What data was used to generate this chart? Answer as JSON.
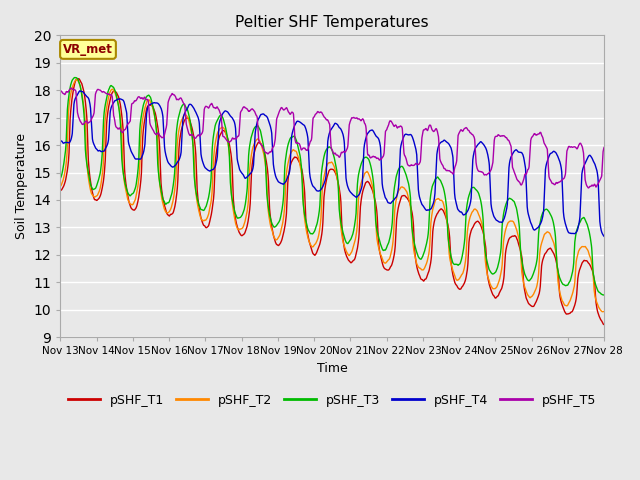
{
  "title": "Peltier SHF Temperatures",
  "xlabel": "Time",
  "ylabel": "Soil Temperature",
  "ylim": [
    9.0,
    20.0
  ],
  "yticks": [
    9.0,
    10.0,
    11.0,
    12.0,
    13.0,
    14.0,
    15.0,
    16.0,
    17.0,
    18.0,
    19.0,
    20.0
  ],
  "xtick_labels": [
    "Nov 13",
    "Nov 14",
    "Nov 15",
    "Nov 16",
    "Nov 17",
    "Nov 18",
    "Nov 19",
    "Nov 20",
    "Nov 21",
    "Nov 22",
    "Nov 23",
    "Nov 24",
    "Nov 25",
    "Nov 26",
    "Nov 27",
    "Nov 28"
  ],
  "series_colors": {
    "pSHF_T1": "#cc0000",
    "pSHF_T2": "#ff8800",
    "pSHF_T3": "#00bb00",
    "pSHF_T4": "#0000cc",
    "pSHF_T5": "#aa00aa"
  },
  "annotation_text": "VR_met",
  "annotation_bbox": {
    "facecolor": "#ffff99",
    "edgecolor": "#aa8800",
    "linewidth": 1.5
  },
  "background_color": "#e8e8e8",
  "plot_bg_color": "#e8e8e8",
  "grid_color": "#ffffff",
  "line_width": 1.0,
  "n_points": 2000,
  "legend_ncol": 5
}
